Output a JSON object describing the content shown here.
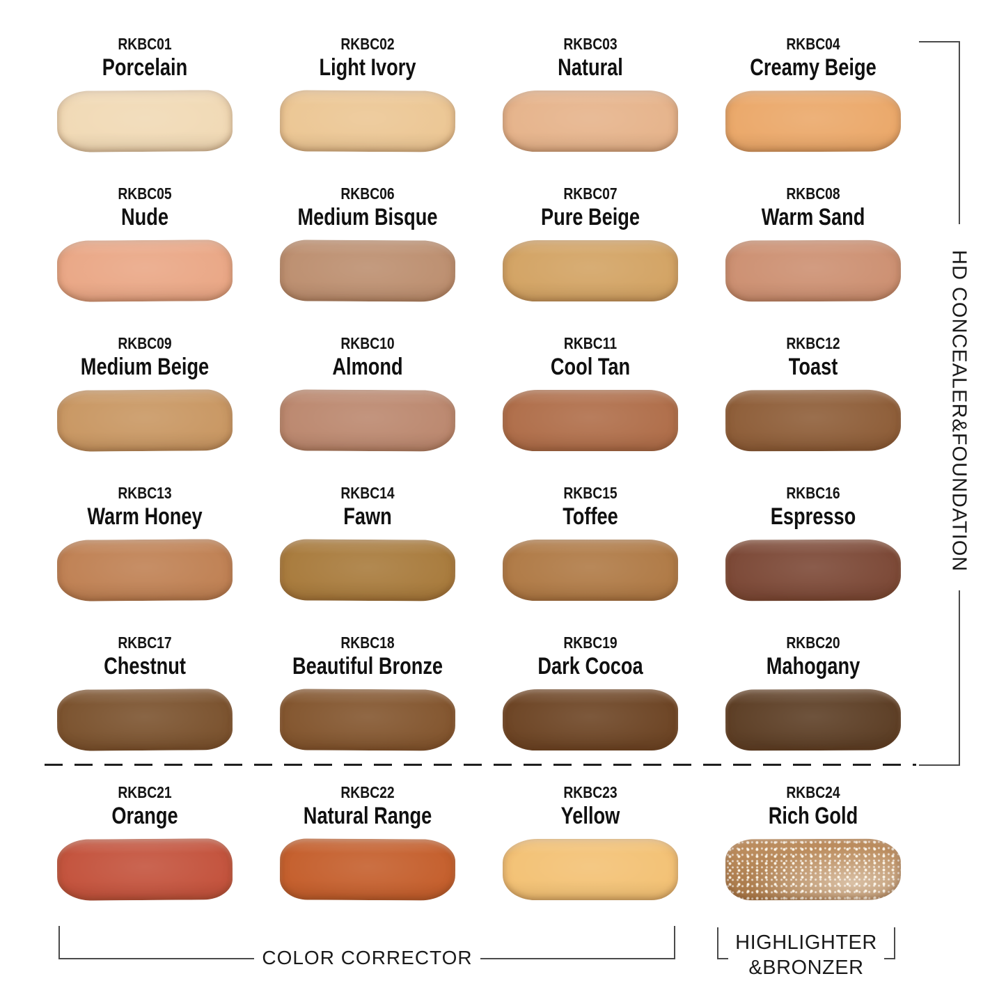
{
  "page": {
    "background": "#ffffff"
  },
  "side_bracket_label": "HD CONCEALER&FOUNDATION",
  "groups": {
    "color_corrector_label": "COLOR CORRECTOR",
    "highlighter_bronzer_line1": "HIGHLIGHTER",
    "highlighter_bronzer_line2": "&BRONZER"
  },
  "line_color": "#4a4a4a",
  "text_color": "#111111",
  "swatches": [
    {
      "code": "RKBC01",
      "name": "Porcelain",
      "color": "#f1dab6",
      "group": "HD CONCEALER&FOUNDATION"
    },
    {
      "code": "RKBC02",
      "name": "Light Ivory",
      "color": "#ecc795",
      "group": "HD CONCEALER&FOUNDATION"
    },
    {
      "code": "RKBC03",
      "name": "Natural",
      "color": "#e6b48c",
      "group": "HD CONCEALER&FOUNDATION"
    },
    {
      "code": "RKBC04",
      "name": "Creamy Beige",
      "color": "#eba96b",
      "group": "HD CONCEALER&FOUNDATION"
    },
    {
      "code": "RKBC05",
      "name": "Nude",
      "color": "#eaa887",
      "group": "HD CONCEALER&FOUNDATION"
    },
    {
      "code": "RKBC06",
      "name": "Medium Bisque",
      "color": "#bd9071",
      "group": "HD CONCEALER&FOUNDATION"
    },
    {
      "code": "RKBC07",
      "name": "Pure Beige",
      "color": "#d3a465",
      "group": "HD CONCEALER&FOUNDATION"
    },
    {
      "code": "RKBC08",
      "name": "Warm Sand",
      "color": "#cd9173",
      "group": "HD CONCEALER&FOUNDATION"
    },
    {
      "code": "RKBC09",
      "name": "Medium Beige",
      "color": "#c99864",
      "group": "HD CONCEALER&FOUNDATION"
    },
    {
      "code": "RKBC10",
      "name": "Almond",
      "color": "#bc8970",
      "group": "HD CONCEALER&FOUNDATION"
    },
    {
      "code": "RKBC11",
      "name": "Cool Tan",
      "color": "#b06f4b",
      "group": "HD CONCEALER&FOUNDATION"
    },
    {
      "code": "RKBC12",
      "name": "Toast",
      "color": "#8f5f3a",
      "group": "HD CONCEALER&FOUNDATION"
    },
    {
      "code": "RKBC13",
      "name": "Warm Honey",
      "color": "#c08255",
      "group": "HD CONCEALER&FOUNDATION"
    },
    {
      "code": "RKBC14",
      "name": "Fawn",
      "color": "#a97c3e",
      "group": "HD CONCEALER&FOUNDATION"
    },
    {
      "code": "RKBC15",
      "name": "Toffee",
      "color": "#b07b47",
      "group": "HD CONCEALER&FOUNDATION"
    },
    {
      "code": "RKBC16",
      "name": "Espresso",
      "color": "#7d4a38",
      "group": "HD CONCEALER&FOUNDATION"
    },
    {
      "code": "RKBC17",
      "name": "Chestnut",
      "color": "#7c5430",
      "group": "HD CONCEALER&FOUNDATION"
    },
    {
      "code": "RKBC18",
      "name": "Beautiful Bronze",
      "color": "#845730",
      "group": "HD CONCEALER&FOUNDATION"
    },
    {
      "code": "RKBC19",
      "name": "Dark Cocoa",
      "color": "#6e4626",
      "group": "HD CONCEALER&FOUNDATION"
    },
    {
      "code": "RKBC20",
      "name": "Mahogany",
      "color": "#5e4027",
      "group": "HD CONCEALER&FOUNDATION"
    },
    {
      "code": "RKBC21",
      "name": "Orange",
      "color": "#c4543e",
      "group": "COLOR CORRECTOR"
    },
    {
      "code": "RKBC22",
      "name": "Natural Range",
      "color": "#c5602e",
      "group": "COLOR CORRECTOR"
    },
    {
      "code": "RKBC23",
      "name": "Yellow",
      "color": "#f3c276",
      "group": "COLOR CORRECTOR"
    },
    {
      "code": "RKBC24",
      "name": "Rich Gold",
      "color": "#b8834e",
      "group": "HIGHLIGHTER&BRONZER",
      "speckled": true
    }
  ]
}
